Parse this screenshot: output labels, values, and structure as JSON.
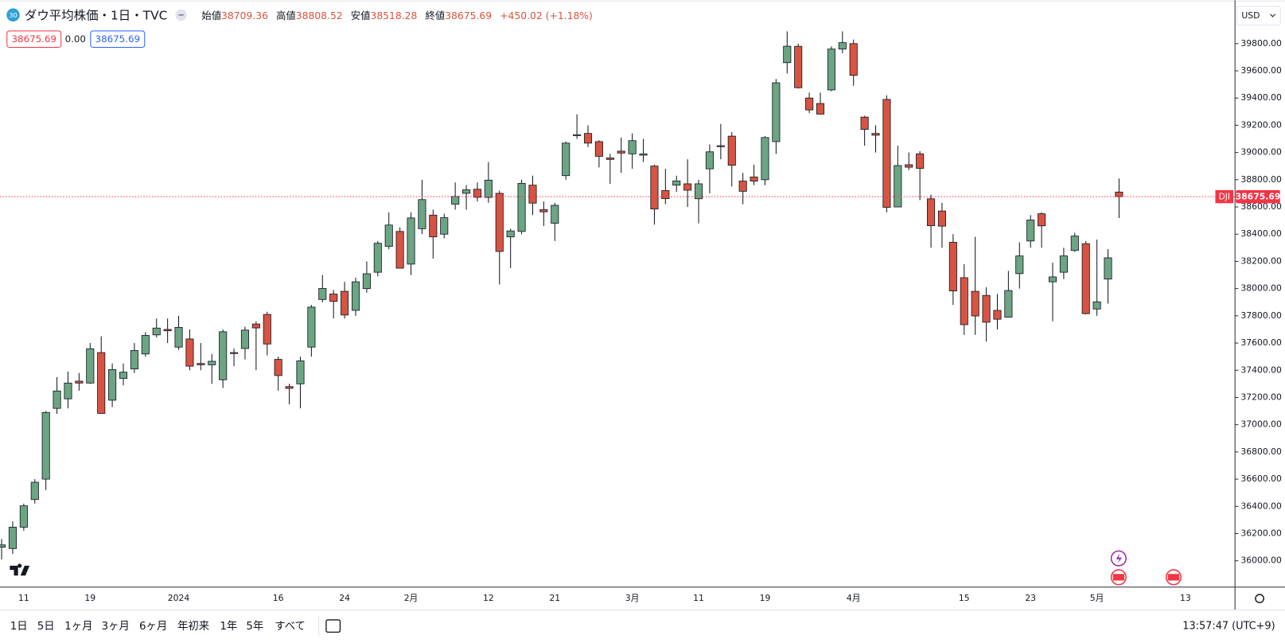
{
  "header": {
    "badge": "30",
    "title": "ダウ平均株価・1日・TVC",
    "ohlc": [
      {
        "label": "始値",
        "value": "38709.36"
      },
      {
        "label": "高値",
        "value": "38808.52"
      },
      {
        "label": "安値",
        "value": "38518.28"
      },
      {
        "label": "終値",
        "value": "38675.69"
      }
    ],
    "change": "+450.02 (+1.18%)",
    "indicators": [
      "38675.69",
      "0.00",
      "38675.69"
    ]
  },
  "currency": "USD",
  "ranges": [
    "1日",
    "5日",
    "1ヶ月",
    "3ヶ月",
    "6ヶ月",
    "年初来",
    "1年",
    "5年",
    "すべて"
  ],
  "clock": "13:57:47 (UTC+9)",
  "chart_data": {
    "type": "candlestick",
    "categories": [
      null,
      null,
      "11",
      null,
      null,
      null,
      null,
      null,
      "19",
      null,
      null,
      null,
      null,
      null,
      null,
      null,
      "2024",
      null,
      null,
      null,
      null,
      null,
      null,
      null,
      null,
      "16",
      null,
      null,
      null,
      null,
      null,
      "24",
      null,
      null,
      null,
      null,
      null,
      "2月",
      null,
      null,
      null,
      null,
      null,
      null,
      "12",
      null,
      null,
      null,
      null,
      null,
      "21",
      null,
      null,
      null,
      null,
      null,
      null,
      "3月",
      null,
      null,
      null,
      null,
      null,
      "11",
      null,
      null,
      null,
      null,
      null,
      "19",
      null,
      null,
      null,
      null,
      null,
      null,
      null,
      "4月",
      null,
      null,
      null,
      null,
      null,
      null,
      null,
      null,
      null,
      "15",
      null,
      null,
      null,
      null,
      null,
      "23",
      null,
      null,
      null,
      null,
      null,
      "5月",
      null,
      null,
      null,
      null,
      null,
      null,
      null,
      "13"
    ],
    "open": [
      36100,
      36090,
      36247,
      36450,
      36600,
      37120,
      37190,
      37320,
      37306,
      37530,
      37180,
      37340,
      37410,
      37520,
      37660,
      37700,
      37570,
      37630,
      37450,
      37440,
      37330,
      37530,
      37560,
      37740,
      37810,
      37480,
      37280,
      37300,
      37570,
      37920,
      37960,
      37980,
      37840,
      38000,
      38120,
      38310,
      38420,
      38180,
      38440,
      38540,
      38400,
      38620,
      38700,
      38730,
      38670,
      38700,
      38380,
      38420,
      38760,
      38580,
      38480,
      38830,
      39125,
      39140,
      39080,
      38960,
      39010,
      38990,
      38980,
      38900,
      38720,
      38760,
      38770,
      38660,
      38880,
      39050,
      39120,
      38790,
      38820,
      38800,
      39080,
      39660,
      39780,
      39400,
      39360,
      39460,
      39760,
      39800,
      39260,
      39140,
      39390,
      38600,
      38910,
      38990,
      38660,
      38570,
      38340,
      38080,
      37980,
      37950,
      37840,
      37790,
      38110,
      38350,
      38550,
      38050,
      38120,
      38280,
      38330,
      37850,
      38070,
      38709.36,
      null,
      null,
      null,
      null,
      null,
      null
    ],
    "high": [
      36160,
      36290,
      36420,
      36600,
      37100,
      37350,
      37390,
      37380,
      37600,
      37650,
      37450,
      37450,
      37600,
      37680,
      37780,
      37780,
      37800,
      37700,
      37600,
      37520,
      37700,
      37560,
      37720,
      37760,
      37830,
      37500,
      37300,
      37500,
      37880,
      38100,
      37990,
      38050,
      38080,
      38200,
      38350,
      38560,
      38450,
      38560,
      38800,
      38580,
      38550,
      38780,
      38760,
      38780,
      38930,
      38720,
      38440,
      38800,
      38830,
      38640,
      38630,
      39080,
      39280,
      39200,
      39090,
      38990,
      39110,
      39140,
      39100,
      38910,
      38880,
      38830,
      38950,
      38800,
      39060,
      39210,
      39150,
      38850,
      38910,
      39120,
      39540,
      39890,
      39800,
      39440,
      39440,
      39780,
      39890,
      39830,
      39270,
      39200,
      39420,
      39050,
      39000,
      39010,
      38690,
      38630,
      38400,
      38180,
      38380,
      38010,
      37960,
      38130,
      38340,
      38540,
      38560,
      38190,
      38300,
      38410,
      38350,
      38360,
      38290,
      38808.52,
      null,
      null,
      null,
      null,
      null,
      null
    ],
    "low": [
      36010,
      36050,
      36220,
      36420,
      36520,
      37080,
      37120,
      37250,
      37300,
      37080,
      37130,
      37290,
      37380,
      37500,
      37640,
      37600,
      37550,
      37400,
      37400,
      37300,
      37270,
      37430,
      37480,
      37400,
      37510,
      37250,
      37150,
      37120,
      37500,
      37900,
      37780,
      37780,
      37800,
      37970,
      38090,
      38290,
      38150,
      38100,
      38400,
      38220,
      38370,
      38580,
      38580,
      38640,
      38630,
      38030,
      38150,
      38400,
      38540,
      38460,
      38350,
      38800,
      39100,
      39040,
      38890,
      38770,
      38850,
      38880,
      38930,
      38470,
      38620,
      38710,
      38600,
      38480,
      38700,
      38950,
      38750,
      38620,
      38760,
      38760,
      38990,
      39580,
      39470,
      39290,
      39280,
      39450,
      39730,
      39490,
      39050,
      39000,
      38560,
      38600,
      38870,
      38650,
      38300,
      38300,
      37880,
      37660,
      37660,
      37610,
      37700,
      37790,
      38000,
      38300,
      38300,
      37760,
      38070,
      38270,
      37810,
      37800,
      37890,
      38518.28,
      null,
      null,
      null,
      null,
      null,
      null
    ],
    "close": [
      36117,
      36247,
      36404,
      36577,
      37090,
      37248,
      37306,
      37306,
      37558,
      37083,
      37405,
      37386,
      37545,
      37656,
      37710,
      37690,
      37715,
      37430,
      37440,
      37466,
      37683,
      37525,
      37695,
      37711,
      37593,
      37361,
      37267,
      37469,
      37864,
      38001,
      37906,
      37806,
      38050,
      38109,
      38333,
      38467,
      38150,
      38519,
      38654,
      38380,
      38521,
      38677,
      38726,
      38671,
      38797,
      38273,
      38424,
      38773,
      38628,
      38564,
      38612,
      39069,
      39131,
      39069,
      38972,
      38949,
      38996,
      39087,
      38990,
      38585,
      38661,
      38791,
      38723,
      38770,
      39005,
      39043,
      38906,
      38715,
      38790,
      39110,
      39512,
      39781,
      39476,
      39313,
      39282,
      39760,
      39807,
      39567,
      39170,
      39127,
      38597,
      38904,
      38892,
      38883,
      38462,
      38459,
      37983,
      37735,
      37799,
      37753,
      37775,
      37986,
      38240,
      38504,
      38461,
      38086,
      38240,
      38386,
      37816,
      37903,
      38226,
      38675.69,
      null,
      null,
      null,
      null,
      null,
      null
    ],
    "up_color": "#6ba583",
    "down_color": "#d75442",
    "ylim": [
      35807,
      40119
    ],
    "yticks": [
      {
        "value": 36000,
        "label": "36000.00"
      },
      {
        "value": 36200,
        "label": "36200.00"
      },
      {
        "value": 36400,
        "label": "36400.00"
      },
      {
        "value": 36600,
        "label": "36600.00"
      },
      {
        "value": 36800,
        "label": "36800.00"
      },
      {
        "value": 37000,
        "label": "37000.00"
      },
      {
        "value": 37200,
        "label": "37200.00"
      },
      {
        "value": 37400,
        "label": "37400.00"
      },
      {
        "value": 37600,
        "label": "37600.00"
      },
      {
        "value": 37800,
        "label": "37800.00"
      },
      {
        "value": 38000,
        "label": "38000.00"
      },
      {
        "value": 38200,
        "label": "38200.00"
      },
      {
        "value": 38400,
        "label": "38400.00"
      },
      {
        "value": 38600,
        "label": "38600.00"
      },
      {
        "value": 38800,
        "label": "38800.00"
      },
      {
        "value": 39000,
        "label": "39000.00"
      },
      {
        "value": 39200,
        "label": "39200.00"
      },
      {
        "value": 39400,
        "label": "39400.00"
      },
      {
        "value": 39600,
        "label": "39600.00"
      },
      {
        "value": 39800,
        "label": "39800.00"
      }
    ],
    "grid": false,
    "price_line": {
      "name": "DJI",
      "value": 38675.69,
      "color": "#f23645"
    }
  }
}
